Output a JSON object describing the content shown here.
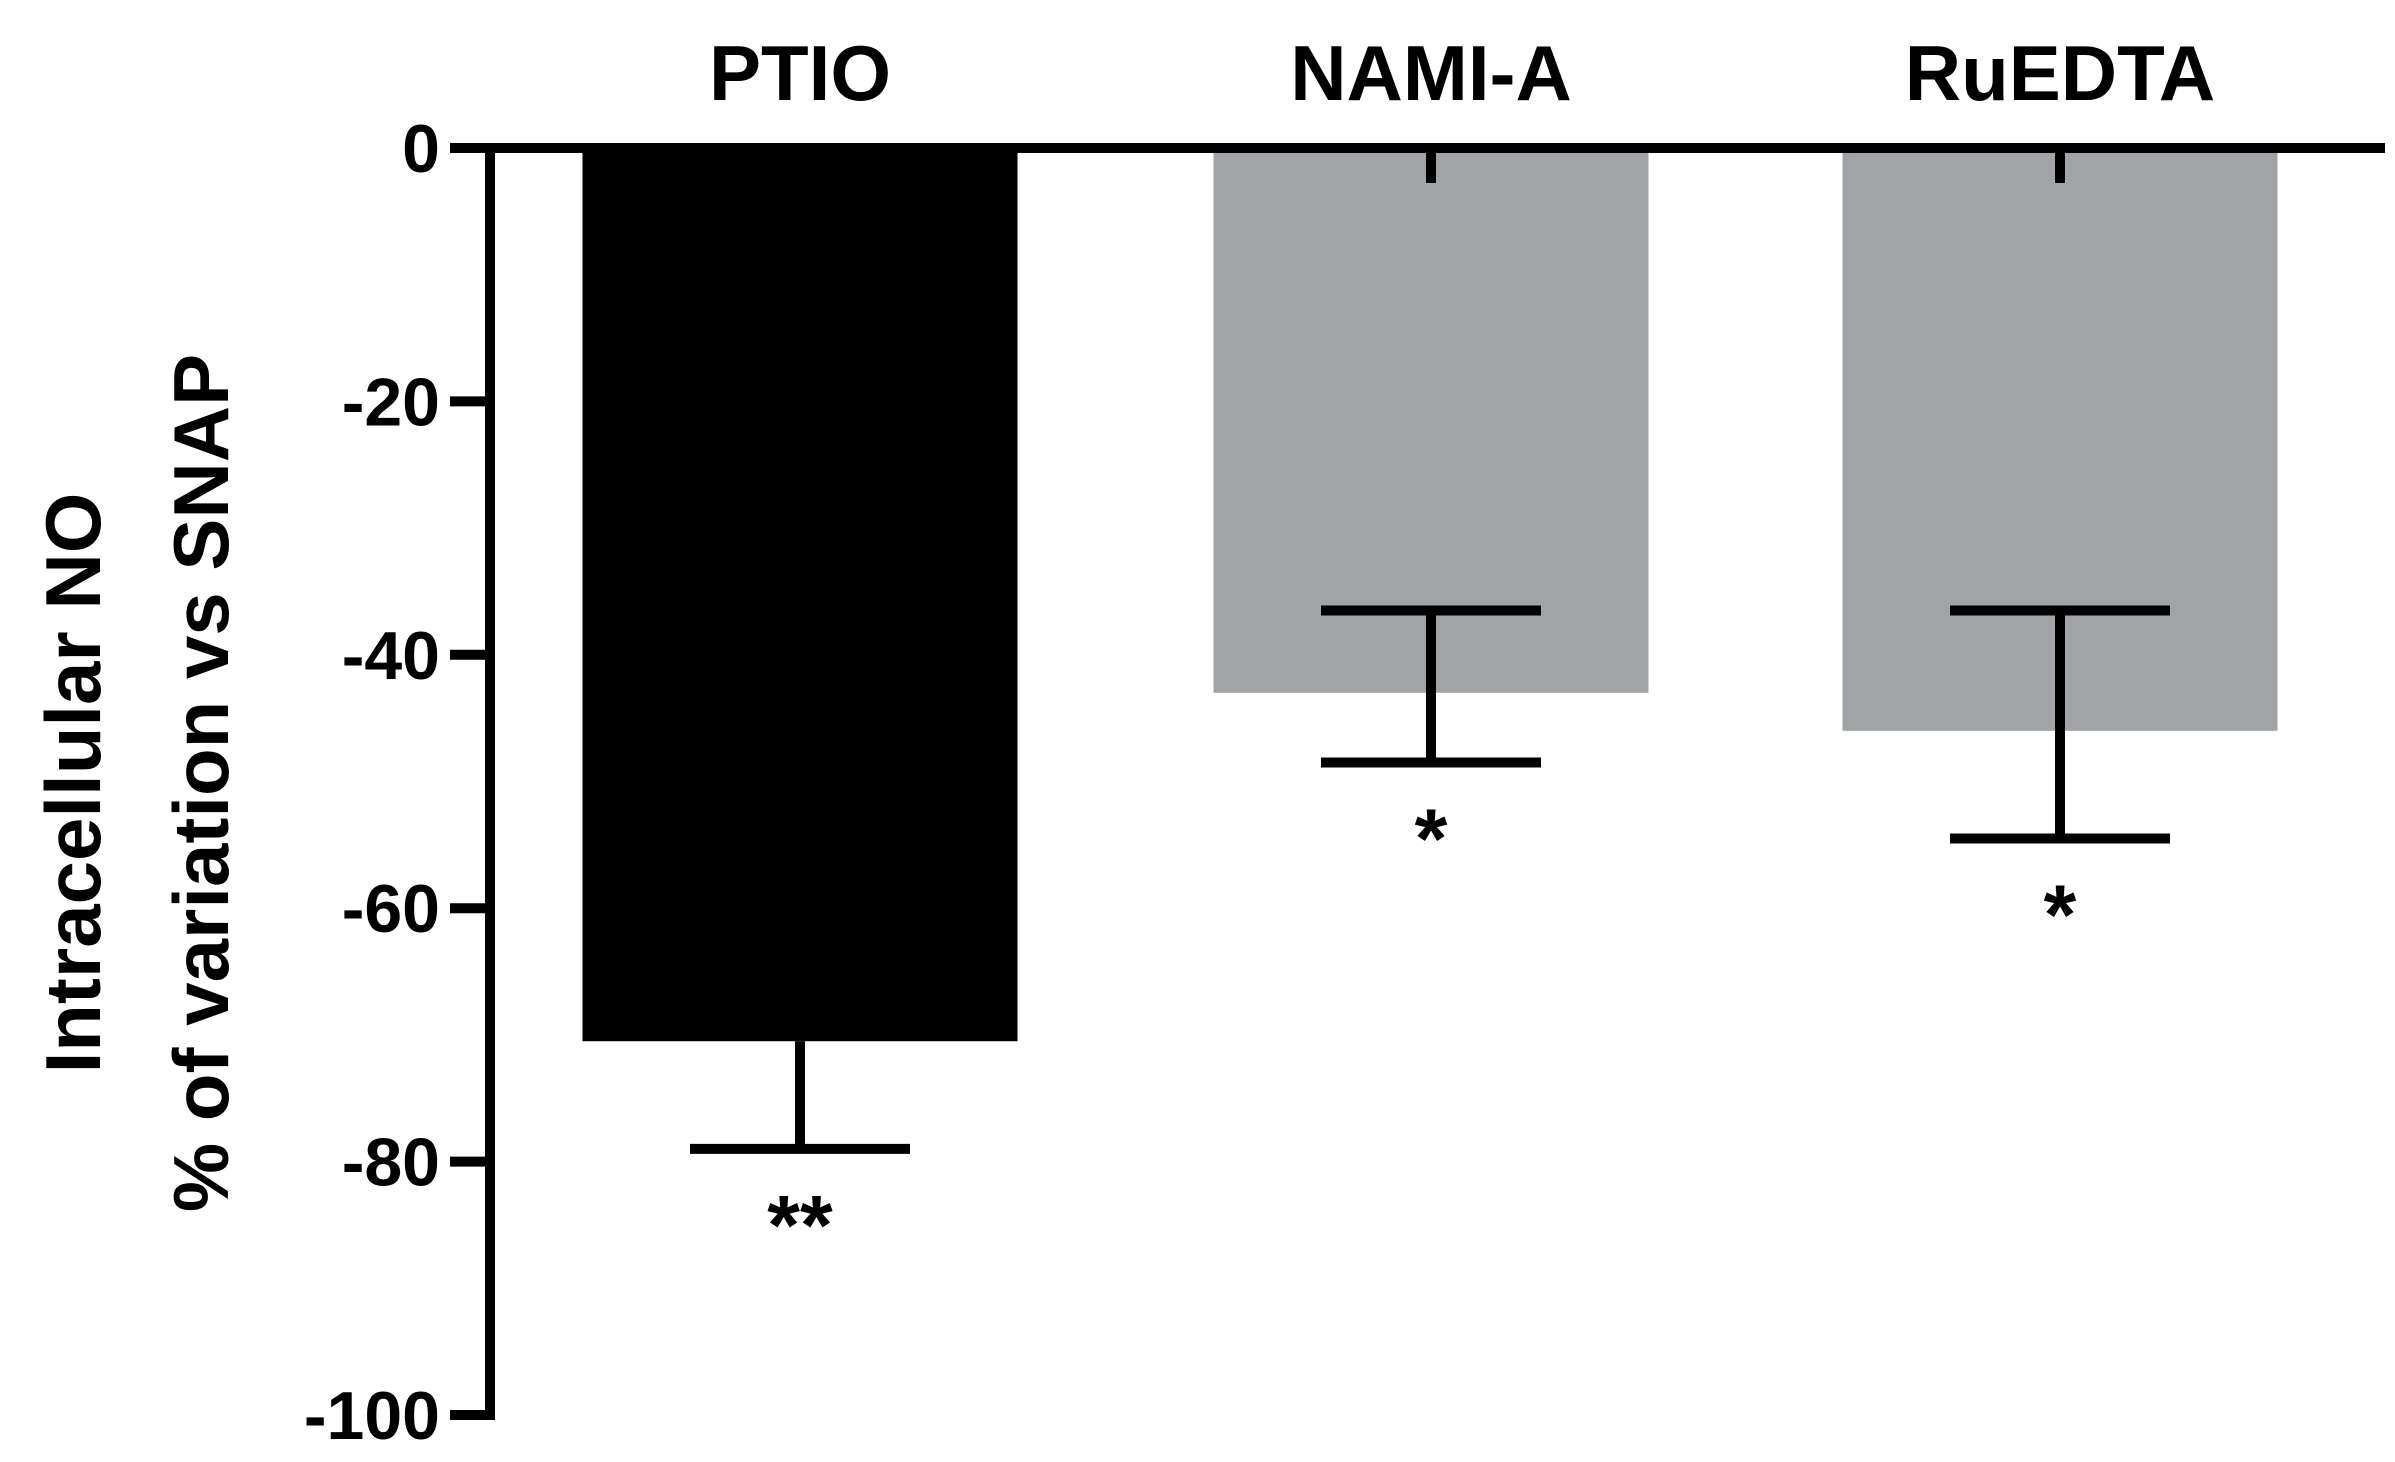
{
  "chart_data": {
    "type": "bar",
    "categories": [
      "PTIO",
      "NAMI-A",
      "RuEDTA"
    ],
    "values": [
      -70.5,
      -43,
      -46
    ],
    "error_low": [
      -79,
      -48.5,
      -54.5
    ],
    "error_high": [
      -70.5,
      -36.5,
      -36.5
    ],
    "error_upper_cap": [
      false,
      true,
      true
    ],
    "significance": [
      "**",
      "*",
      "*"
    ],
    "bar_colors": [
      "#000000",
      "#a2a3a7",
      "#a2a3a7"
    ],
    "ylabel_line1": "Intracellular NO",
    "ylabel_line2": "% of variation vs SNAP",
    "xlabel": "",
    "title": "",
    "ylim": [
      -100,
      0
    ],
    "yticks": [
      0,
      -20,
      -40,
      -60,
      -80,
      -100
    ],
    "ytick_labels": [
      "0",
      "-20",
      "-40",
      "-60",
      "-80",
      "-100"
    ],
    "category_axis_position": "top",
    "grid": false,
    "legend": "none"
  }
}
